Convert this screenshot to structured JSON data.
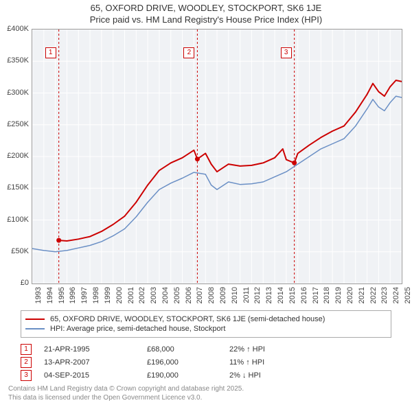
{
  "title_line1": "65, OXFORD DRIVE, WOODLEY, STOCKPORT, SK6 1JE",
  "title_line2": "Price paid vs. HM Land Registry's House Price Index (HPI)",
  "chart": {
    "type": "line",
    "background_color": "#f0f2f5",
    "grid_color": "#ffffff",
    "dash_color": "#cc0000",
    "axis_text_color": "#444444",
    "ylim": [
      0,
      400000
    ],
    "ytick_step": 50000,
    "y_ticks": [
      "£0",
      "£50K",
      "£100K",
      "£150K",
      "£200K",
      "£250K",
      "£300K",
      "£350K",
      "£400K"
    ],
    "xlim": [
      1993,
      2025
    ],
    "x_ticks": [
      "1993",
      "1994",
      "1995",
      "1996",
      "1997",
      "1998",
      "1999",
      "2000",
      "2001",
      "2002",
      "2003",
      "2004",
      "2005",
      "2006",
      "2007",
      "2008",
      "2009",
      "2010",
      "2011",
      "2012",
      "2013",
      "2014",
      "2015",
      "2016",
      "2017",
      "2018",
      "2019",
      "2020",
      "2021",
      "2022",
      "2023",
      "2024",
      "2025"
    ],
    "series": [
      {
        "name": "65, OXFORD DRIVE, WOODLEY, STOCKPORT, SK6 1JE (semi-detached house)",
        "color": "#cc0000",
        "line_width": 2,
        "data": [
          [
            1995.3,
            68000
          ],
          [
            1996,
            67000
          ],
          [
            1997,
            70000
          ],
          [
            1998,
            74000
          ],
          [
            1999,
            82000
          ],
          [
            2000,
            93000
          ],
          [
            2001,
            106000
          ],
          [
            2002,
            128000
          ],
          [
            2003,
            155000
          ],
          [
            2004,
            178000
          ],
          [
            2005,
            190000
          ],
          [
            2006,
            198000
          ],
          [
            2007,
            210000
          ],
          [
            2007.3,
            196000
          ],
          [
            2008,
            205000
          ],
          [
            2008.5,
            188000
          ],
          [
            2009,
            176000
          ],
          [
            2010,
            188000
          ],
          [
            2011,
            185000
          ],
          [
            2012,
            186000
          ],
          [
            2013,
            190000
          ],
          [
            2014,
            198000
          ],
          [
            2014.7,
            212000
          ],
          [
            2015,
            195000
          ],
          [
            2015.7,
            190000
          ],
          [
            2016,
            205000
          ],
          [
            2017,
            218000
          ],
          [
            2018,
            230000
          ],
          [
            2019,
            240000
          ],
          [
            2020,
            248000
          ],
          [
            2021,
            270000
          ],
          [
            2022,
            298000
          ],
          [
            2022.5,
            315000
          ],
          [
            2023,
            302000
          ],
          [
            2023.5,
            295000
          ],
          [
            2024,
            310000
          ],
          [
            2024.5,
            320000
          ],
          [
            2025,
            318000
          ]
        ]
      },
      {
        "name": "HPI: Average price, semi-detached house, Stockport",
        "color": "#6a8fc5",
        "line_width": 1.5,
        "data": [
          [
            1993,
            55000
          ],
          [
            1994,
            52000
          ],
          [
            1995,
            50000
          ],
          [
            1996,
            52000
          ],
          [
            1997,
            56000
          ],
          [
            1998,
            60000
          ],
          [
            1999,
            66000
          ],
          [
            2000,
            75000
          ],
          [
            2001,
            86000
          ],
          [
            2002,
            105000
          ],
          [
            2003,
            128000
          ],
          [
            2004,
            148000
          ],
          [
            2005,
            158000
          ],
          [
            2006,
            166000
          ],
          [
            2007,
            175000
          ],
          [
            2008,
            172000
          ],
          [
            2008.5,
            155000
          ],
          [
            2009,
            148000
          ],
          [
            2010,
            160000
          ],
          [
            2011,
            156000
          ],
          [
            2012,
            157000
          ],
          [
            2013,
            160000
          ],
          [
            2014,
            168000
          ],
          [
            2015,
            176000
          ],
          [
            2016,
            188000
          ],
          [
            2017,
            200000
          ],
          [
            2018,
            212000
          ],
          [
            2019,
            220000
          ],
          [
            2020,
            228000
          ],
          [
            2021,
            248000
          ],
          [
            2022,
            275000
          ],
          [
            2022.5,
            290000
          ],
          [
            2023,
            278000
          ],
          [
            2023.5,
            272000
          ],
          [
            2024,
            285000
          ],
          [
            2024.5,
            295000
          ],
          [
            2025,
            293000
          ]
        ]
      }
    ],
    "sale_markers": [
      {
        "label": "1",
        "x": 1995.3,
        "y": 68000
      },
      {
        "label": "2",
        "x": 2007.3,
        "y": 196000
      },
      {
        "label": "3",
        "x": 2015.7,
        "y": 190000
      }
    ]
  },
  "legend": {
    "series1": "65, OXFORD DRIVE, WOODLEY, STOCKPORT, SK6 1JE (semi-detached house)",
    "series2": "HPI: Average price, semi-detached house, Stockport",
    "color1": "#cc0000",
    "color2": "#6a8fc5"
  },
  "annotations": [
    {
      "n": "1",
      "date": "21-APR-1995",
      "price": "£68,000",
      "delta": "22% ↑ HPI"
    },
    {
      "n": "2",
      "date": "13-APR-2007",
      "price": "£196,000",
      "delta": "11% ↑ HPI"
    },
    {
      "n": "3",
      "date": "04-SEP-2015",
      "price": "£190,000",
      "delta": "2% ↓ HPI"
    }
  ],
  "footer_line1": "Contains HM Land Registry data © Crown copyright and database right 2025.",
  "footer_line2": "This data is licensed under the Open Government Licence v3.0."
}
